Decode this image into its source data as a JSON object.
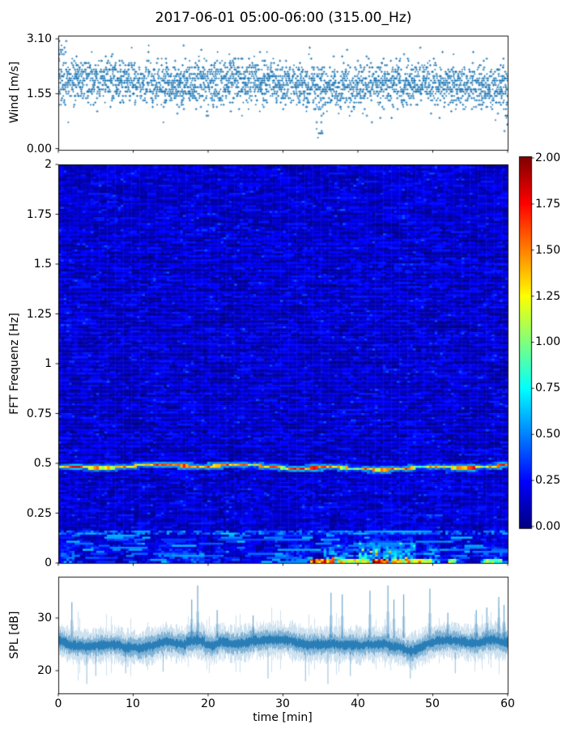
{
  "title": "2017-06-01 05:00-06:00 (315.00_Hz)",
  "chart_data": [
    {
      "id": "wind-scatter",
      "type": "scatter",
      "ylabel": "Wind [m/s]",
      "ytick_labels": [
        "3.10",
        "1.55",
        "0.00"
      ],
      "ytick_values": [
        3.1,
        1.55,
        0.0
      ],
      "ylim": [
        0,
        3.28
      ],
      "xlim": [
        0,
        60
      ],
      "marker": "plus",
      "color": "#1f77b4",
      "n_samples": 1800,
      "band_center": 1.82,
      "band_spread": 0.58,
      "quantize_step": 0.062,
      "high_cluster": {
        "t_max": 1.2,
        "v_max": 3.08
      },
      "dip": {
        "t0": 34.4,
        "t1": 35.3,
        "v_min": 0.28
      },
      "edge_dip": {
        "t0": 59.5,
        "t1": 60.0,
        "v_min": 0.45
      },
      "low_outliers": [
        [
          5.2,
          1.05
        ],
        [
          12.6,
          1.18
        ],
        [
          19.8,
          0.95
        ],
        [
          25.4,
          1.1
        ],
        [
          33.1,
          1.2
        ],
        [
          41.2,
          0.9
        ],
        [
          50.9,
          0.85
        ],
        [
          57.3,
          1.15
        ]
      ]
    },
    {
      "id": "spectrogram",
      "type": "heatmap",
      "ylabel": "FFT Frequenz [Hz]",
      "ytick_labels": [
        "2",
        "1.75",
        "1.5",
        "1.25",
        "1",
        "0.75",
        "0.5",
        "0.25",
        "0"
      ],
      "ytick_values": [
        2,
        1.75,
        1.5,
        1.25,
        1,
        0.75,
        0.5,
        0.25,
        0
      ],
      "ylim": [
        0,
        2
      ],
      "xlim": [
        0,
        60
      ],
      "colormap": "jet",
      "clim": [
        0,
        2
      ],
      "background_noise": {
        "min": 0.03,
        "max": 0.3
      },
      "tonal_line": {
        "freq_base": 0.481,
        "wobble": 0.014,
        "value_min": 0.55,
        "value_max": 2.0
      },
      "faint_line_freq": 0.152,
      "low_freq_band_max": 0.17,
      "low_freq_bursts": [
        {
          "t0": 0.2,
          "t1": 2.2,
          "strength": 0.55
        },
        {
          "t0": 5.6,
          "t1": 6.4,
          "strength": 0.3
        },
        {
          "t0": 13.2,
          "t1": 15.6,
          "strength": 0.6
        },
        {
          "t0": 16.5,
          "t1": 19.5,
          "strength": 0.5
        },
        {
          "t0": 20.5,
          "t1": 21.6,
          "strength": 0.45
        },
        {
          "t0": 30.4,
          "t1": 33.6,
          "strength": 0.55
        },
        {
          "t0": 35.5,
          "t1": 38.6,
          "strength": 0.8
        },
        {
          "t0": 40.0,
          "t1": 43.0,
          "strength": 0.95
        },
        {
          "t0": 43.5,
          "t1": 47.6,
          "strength": 0.9
        },
        {
          "t0": 48.8,
          "t1": 51.0,
          "strength": 0.65
        },
        {
          "t0": 52.9,
          "t1": 54.1,
          "strength": 0.4
        },
        {
          "t0": 56.5,
          "t1": 59.5,
          "strength": 0.55
        }
      ],
      "bottom_hot_segments": [
        {
          "t0": 33.5,
          "t1": 37.0,
          "level": 1.9
        },
        {
          "t0": 37.4,
          "t1": 41.5,
          "level": 1.4
        },
        {
          "t0": 41.8,
          "t1": 44.2,
          "level": 2.0
        },
        {
          "t0": 44.5,
          "t1": 50.0,
          "level": 1.5
        },
        {
          "t0": 52.0,
          "t1": 53.2,
          "level": 1.2
        },
        {
          "t0": 56.8,
          "t1": 59.2,
          "level": 1.1
        }
      ],
      "colorbar": {
        "tick_labels": [
          "2.00",
          "1.75",
          "1.50",
          "1.25",
          "1.00",
          "0.75",
          "0.50",
          "0.25",
          "0.00"
        ],
        "tick_values": [
          2.0,
          1.75,
          1.5,
          1.25,
          1.0,
          0.75,
          0.5,
          0.25,
          0.0
        ]
      }
    },
    {
      "id": "spl-series",
      "type": "line",
      "ylabel": "SPL [dB]",
      "ytick_labels": [
        "30",
        "20"
      ],
      "ytick_values": [
        30,
        20
      ],
      "ylim": [
        15.7,
        37.8
      ],
      "xlim": [
        0,
        60
      ],
      "xlabel": "time [min]",
      "xtick_labels": [
        "0",
        "10",
        "20",
        "30",
        "40",
        "50",
        "60"
      ],
      "xtick_values": [
        0,
        10,
        20,
        30,
        40,
        50,
        60
      ],
      "color": "#1f77b4",
      "baseline_mean": 25,
      "band_halfwidth": [
        1.3,
        2.3
      ],
      "up_spikes": [
        [
          1.8,
          33.0
        ],
        [
          17.8,
          33.5
        ],
        [
          18.6,
          36.2
        ],
        [
          21.2,
          31.5
        ],
        [
          26.0,
          30.5
        ],
        [
          36.4,
          34.8
        ],
        [
          37.9,
          34.5
        ],
        [
          41.6,
          35.2
        ],
        [
          44.0,
          36.2
        ],
        [
          44.8,
          33.5
        ],
        [
          46.1,
          34.5
        ],
        [
          49.6,
          35.6
        ],
        [
          52.0,
          31.0
        ],
        [
          55.8,
          31.5
        ],
        [
          57.2,
          32.0
        ],
        [
          58.8,
          34.0
        ],
        [
          59.5,
          32.5
        ]
      ],
      "down_spikes": [
        [
          3.8,
          17.5
        ],
        [
          5.0,
          19.0
        ],
        [
          9.0,
          19.5
        ],
        [
          14.0,
          19.8
        ],
        [
          28.0,
          18.5
        ],
        [
          33.0,
          18.0
        ],
        [
          36.0,
          17.5
        ],
        [
          39.0,
          19.0
        ],
        [
          47.0,
          18.5
        ],
        [
          53.0,
          19.5
        ]
      ]
    }
  ]
}
